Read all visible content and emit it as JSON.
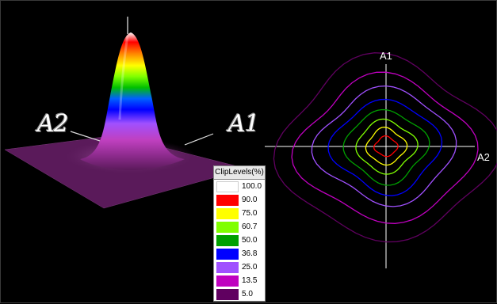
{
  "axes_3d": {
    "a1_label": "A1",
    "a2_label": "A2"
  },
  "axes_2d": {
    "a1_label": "A1",
    "a2_label": "A2"
  },
  "legend": {
    "title": "ClipLevels(%)",
    "levels": [
      {
        "value": "100.0",
        "color": "#ffffff"
      },
      {
        "value": "90.0",
        "color": "#ff0000"
      },
      {
        "value": "75.0",
        "color": "#ffff00"
      },
      {
        "value": "60.7",
        "color": "#80ff00"
      },
      {
        "value": "50.0",
        "color": "#00a000"
      },
      {
        "value": "36.8",
        "color": "#0000ff"
      },
      {
        "value": "25.0",
        "color": "#a050ff"
      },
      {
        "value": "13.5",
        "color": "#c000c0"
      },
      {
        "value": "5.0",
        "color": "#600060"
      }
    ]
  },
  "contour_colors": [
    "#ff0000",
    "#ffff00",
    "#80ff00",
    "#00a000",
    "#0000ff",
    "#a050ff",
    "#c000c0",
    "#600060"
  ]
}
